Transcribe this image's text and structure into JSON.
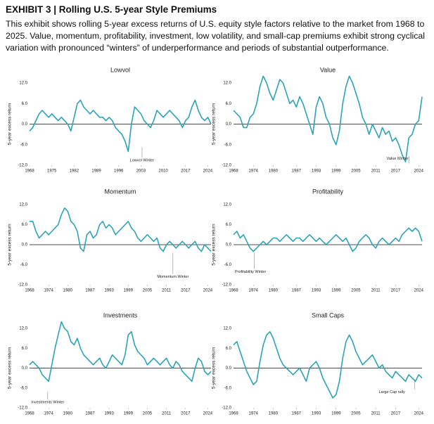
{
  "header": {
    "title": "EXHIBIT 3 | Rolling U.S. 5-year Style Premiums",
    "description": "This exhibit shows rolling 5-year excess returns of U.S. equity style factors relative to the market from 1968 to 2025. Value, momentum, profitability, investment, low volatility, and small-cap premiums exhibit strong cyclical variation with pronounced “winters” of underperformance and periods of substantial outperformance."
  },
  "chart_data": [
    {
      "type": "line",
      "title": "Lowvol",
      "y_label": "5-year excess return",
      "annotation": "Lowvol Winter",
      "color": "#2ba3b9",
      "x": [
        1968,
        1969,
        1970,
        1971,
        1972,
        1973,
        1974,
        1975,
        1976,
        1977,
        1978,
        1979,
        1980,
        1981,
        1982,
        1983,
        1984,
        1985,
        1986,
        1987,
        1988,
        1989,
        1990,
        1991,
        1992,
        1993,
        1994,
        1995,
        1996,
        1997,
        1998,
        1999,
        2000,
        2001,
        2002,
        2003,
        2004,
        2005,
        2006,
        2007,
        2008,
        2009,
        2010,
        2011,
        2012,
        2013,
        2014,
        2015,
        2016,
        2017,
        2018,
        2019,
        2020,
        2021,
        2022,
        2023,
        2024,
        2025
      ],
      "values": [
        -2,
        -1,
        1,
        3,
        4,
        3,
        2,
        3,
        2,
        1,
        2,
        1,
        0,
        -2,
        2,
        6,
        7,
        5,
        4,
        3,
        4,
        3,
        2,
        2,
        1,
        2,
        1,
        -1,
        -2,
        -3,
        -5,
        -8,
        0,
        5,
        4,
        3,
        1,
        0,
        -1,
        1,
        4,
        3,
        2,
        3,
        4,
        3,
        2,
        1,
        -1,
        1,
        2,
        5,
        7,
        4,
        2,
        1,
        2,
        0
      ],
      "xlim": [
        1968,
        2025
      ],
      "xticks": [
        1968,
        1975,
        1982,
        1989,
        1996,
        2003,
        2010,
        2017,
        2024
      ],
      "ylim": [
        -12,
        12
      ],
      "yticks": [
        {
          "value": 12,
          "label": "12.0"
        },
        {
          "value": 6,
          "label": "6.0"
        },
        {
          "value": 0,
          "label": "0.0"
        },
        {
          "value": -6,
          "label": "-6.0"
        },
        {
          "value": -12,
          "label": "-12.0"
        }
      ]
    },
    {
      "type": "line",
      "title": "Value",
      "y_label": "5-year excess return",
      "annotation": "Value Winter",
      "color": "#2ba3b9",
      "x": [
        1968,
        1969,
        1970,
        1971,
        1972,
        1973,
        1974,
        1975,
        1976,
        1977,
        1978,
        1979,
        1980,
        1981,
        1982,
        1983,
        1984,
        1985,
        1986,
        1987,
        1988,
        1989,
        1990,
        1991,
        1992,
        1993,
        1994,
        1995,
        1996,
        1997,
        1998,
        1999,
        2000,
        2001,
        2002,
        2003,
        2004,
        2005,
        2006,
        2007,
        2008,
        2009,
        2010,
        2011,
        2012,
        2013,
        2014,
        2015,
        2016,
        2017,
        2018,
        2019,
        2020,
        2021,
        2022,
        2023,
        2024,
        2025
      ],
      "values": [
        4,
        3,
        2,
        -1,
        -1,
        2,
        3,
        6,
        11,
        14,
        12,
        9,
        7,
        10,
        13,
        12,
        9,
        6,
        7,
        5,
        8,
        6,
        3,
        0,
        -3,
        5,
        8,
        6,
        2,
        0,
        -4,
        -6,
        -2,
        6,
        11,
        14,
        12,
        9,
        6,
        2,
        0,
        -3,
        0,
        -2,
        -4,
        -1,
        -3,
        -2,
        -5,
        -4,
        -6,
        -9,
        -11,
        -4,
        -3,
        0,
        1,
        8
      ],
      "xlim": [
        1968,
        2025
      ],
      "xticks": [
        1968,
        1974,
        1980,
        1987,
        1993,
        1999,
        2005,
        2011,
        2017,
        2024
      ],
      "ylim": [
        -12,
        12
      ],
      "yticks": [
        {
          "value": 12,
          "label": "12.0"
        },
        {
          "value": 6,
          "label": "6.0"
        },
        {
          "value": 0,
          "label": "0.0"
        },
        {
          "value": -6,
          "label": "-6.0"
        },
        {
          "value": -12,
          "label": "-12.0"
        }
      ]
    },
    {
      "type": "line",
      "title": "Momentum",
      "y_label": "5-year excess return",
      "annotation": "Momentum Winter",
      "color": "#2ba3b9",
      "x": [
        1968,
        1969,
        1970,
        1971,
        1972,
        1973,
        1974,
        1975,
        1976,
        1977,
        1978,
        1979,
        1980,
        1981,
        1982,
        1983,
        1984,
        1985,
        1986,
        1987,
        1988,
        1989,
        1990,
        1991,
        1992,
        1993,
        1994,
        1995,
        1996,
        1997,
        1998,
        1999,
        2000,
        2001,
        2002,
        2003,
        2004,
        2005,
        2006,
        2007,
        2008,
        2009,
        2010,
        2011,
        2012,
        2013,
        2014,
        2015,
        2016,
        2017,
        2018,
        2019,
        2020,
        2021,
        2022,
        2023,
        2024,
        2025
      ],
      "values": [
        7,
        7,
        4,
        2,
        3,
        4,
        3,
        4,
        5,
        6,
        9,
        11,
        10,
        7,
        6,
        4,
        -1,
        -2,
        3,
        4,
        2,
        3,
        6,
        7,
        5,
        6,
        5,
        3,
        4,
        5,
        6,
        7,
        5,
        4,
        2,
        1,
        2,
        3,
        2,
        1,
        2,
        -1,
        -2,
        0,
        1,
        0,
        -1,
        0,
        1,
        0,
        -1,
        0,
        1,
        -1,
        -2,
        0,
        -1,
        -2
      ],
      "xlim": [
        1968,
        2025
      ],
      "xticks": [
        1968,
        1974,
        1980,
        1987,
        1993,
        1999,
        2005,
        2011,
        2017,
        2024
      ],
      "ylim": [
        -12,
        12
      ],
      "yticks": [
        {
          "value": 12,
          "label": "12.0"
        },
        {
          "value": 6,
          "label": "6.0"
        },
        {
          "value": 0,
          "label": "0.0"
        },
        {
          "value": -6,
          "label": "-6.0"
        },
        {
          "value": -12,
          "label": "-12.0"
        }
      ]
    },
    {
      "type": "line",
      "title": "Profitability",
      "y_label": "5-year excess return",
      "annotation": "Profitability Winter",
      "color": "#2ba3b9",
      "x": [
        1968,
        1969,
        1970,
        1971,
        1972,
        1973,
        1974,
        1975,
        1976,
        1977,
        1978,
        1979,
        1980,
        1981,
        1982,
        1983,
        1984,
        1985,
        1986,
        1987,
        1988,
        1989,
        1990,
        1991,
        1992,
        1993,
        1994,
        1995,
        1996,
        1997,
        1998,
        1999,
        2000,
        2001,
        2002,
        2003,
        2004,
        2005,
        2006,
        2007,
        2008,
        2009,
        2010,
        2011,
        2012,
        2013,
        2014,
        2015,
        2016,
        2017,
        2018,
        2019,
        2020,
        2021,
        2022,
        2023,
        2024,
        2025
      ],
      "values": [
        3,
        4,
        2,
        3,
        1,
        -1,
        -2,
        -1,
        0,
        1,
        0,
        1,
        2,
        2,
        1,
        2,
        3,
        2,
        1,
        2,
        2,
        1,
        2,
        3,
        2,
        1,
        2,
        1,
        0,
        1,
        2,
        3,
        2,
        1,
        2,
        0,
        -2,
        -1,
        1,
        2,
        3,
        2,
        0,
        -1,
        1,
        2,
        1,
        0,
        1,
        2,
        1,
        3,
        4,
        5,
        4,
        5,
        4,
        1
      ],
      "xlim": [
        1968,
        2025
      ],
      "xticks": [
        1968,
        1974,
        1980,
        1987,
        1993,
        1999,
        2005,
        2011,
        2017,
        2024
      ],
      "ylim": [
        -12,
        12
      ],
      "yticks": [
        {
          "value": 12,
          "label": "12.0"
        },
        {
          "value": 6,
          "label": "6.0"
        },
        {
          "value": 0,
          "label": "0.0"
        },
        {
          "value": -6,
          "label": "-6.0"
        },
        {
          "value": -12,
          "label": "-12.0"
        }
      ]
    },
    {
      "type": "line",
      "title": "Investments",
      "y_label": "5-year excess return",
      "annotation": "Investments Winter",
      "color": "#2ba3b9",
      "x": [
        1968,
        1969,
        1970,
        1971,
        1972,
        1973,
        1974,
        1975,
        1976,
        1977,
        1978,
        1979,
        1980,
        1981,
        1982,
        1983,
        1984,
        1985,
        1986,
        1987,
        1988,
        1989,
        1990,
        1991,
        1992,
        1993,
        1994,
        1995,
        1996,
        1997,
        1998,
        1999,
        2000,
        2001,
        2002,
        2003,
        2004,
        2005,
        2006,
        2007,
        2008,
        2009,
        2010,
        2011,
        2012,
        2013,
        2014,
        2015,
        2016,
        2017,
        2018,
        2019,
        2020,
        2021,
        2022,
        2023,
        2024,
        2025
      ],
      "values": [
        1,
        2,
        1,
        0,
        -2,
        -3,
        -4,
        1,
        6,
        10,
        14,
        12,
        11,
        8,
        7,
        9,
        6,
        4,
        3,
        2,
        1,
        2,
        3,
        1,
        0,
        2,
        4,
        3,
        2,
        1,
        4,
        10,
        11,
        7,
        5,
        4,
        3,
        1,
        2,
        3,
        2,
        1,
        2,
        3,
        1,
        0,
        2,
        1,
        -1,
        -2,
        -3,
        -4,
        0,
        3,
        2,
        -1,
        -2,
        -1
      ],
      "xlim": [
        1968,
        2025
      ],
      "xticks": [
        1968,
        1974,
        1980,
        1987,
        1993,
        1999,
        2005,
        2011,
        2017,
        2024
      ],
      "ylim": [
        -12,
        12
      ],
      "yticks": [
        {
          "value": 12,
          "label": "12.0"
        },
        {
          "value": 6,
          "label": "6.0"
        },
        {
          "value": 0,
          "label": "0.0"
        },
        {
          "value": -6,
          "label": "-6.0"
        },
        {
          "value": -12,
          "label": "-12.0"
        }
      ]
    },
    {
      "type": "line",
      "title": "Small Caps",
      "y_label": "5-year excess return",
      "annotation": "Large Cap rally",
      "color": "#2ba3b9",
      "x": [
        1968,
        1969,
        1970,
        1971,
        1972,
        1973,
        1974,
        1975,
        1976,
        1977,
        1978,
        1979,
        1980,
        1981,
        1982,
        1983,
        1984,
        1985,
        1986,
        1987,
        1988,
        1989,
        1990,
        1991,
        1992,
        1993,
        1994,
        1995,
        1996,
        1997,
        1998,
        1999,
        2000,
        2001,
        2002,
        2003,
        2004,
        2005,
        2006,
        2007,
        2008,
        2009,
        2010,
        2011,
        2012,
        2013,
        2014,
        2015,
        2016,
        2017,
        2018,
        2019,
        2020,
        2021,
        2022,
        2023,
        2024,
        2025
      ],
      "values": [
        7,
        8,
        5,
        2,
        -1,
        -3,
        -5,
        -4,
        2,
        7,
        10,
        11,
        9,
        6,
        3,
        1,
        0,
        -1,
        -2,
        -1,
        0,
        -2,
        -4,
        0,
        1,
        2,
        0,
        -3,
        -5,
        -7,
        -9,
        -8,
        -4,
        3,
        8,
        10,
        8,
        5,
        3,
        1,
        2,
        3,
        4,
        2,
        0,
        1,
        -1,
        -2,
        -3,
        -1,
        -2,
        -3,
        -4,
        -2,
        -3,
        -4,
        -2,
        -3
      ],
      "xlim": [
        1968,
        2025
      ],
      "xticks": [
        1968,
        1974,
        1980,
        1987,
        1993,
        1999,
        2005,
        2011,
        2017,
        2024
      ],
      "ylim": [
        -12,
        12
      ],
      "yticks": [
        {
          "value": 12,
          "label": "12.0"
        },
        {
          "value": 6,
          "label": "6.0"
        },
        {
          "value": 0,
          "label": "0.0"
        },
        {
          "value": -6,
          "label": "-6.0"
        },
        {
          "value": -12,
          "label": "-12.0"
        }
      ]
    }
  ]
}
